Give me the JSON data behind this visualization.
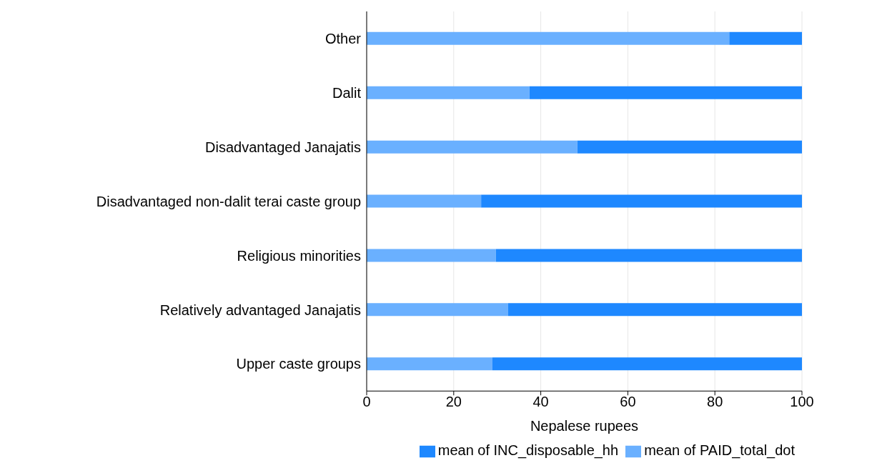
{
  "chart_data": {
    "type": "bar",
    "orientation": "horizontal",
    "stacked": true,
    "categories": [
      "Other",
      "Dalit",
      "Disadvantaged Janajatis",
      "Disadvantaged non-dalit terai caste group",
      "Religious minorities",
      "Relatively advantaged Janajatis",
      "Upper caste groups"
    ],
    "series": [
      {
        "name": "mean of PAID_total_dot",
        "color": "#6ab0ff",
        "values": [
          83.3,
          37.4,
          48.4,
          26.3,
          29.7,
          32.5,
          28.9
        ]
      },
      {
        "name": "mean of INC_disposable_hh",
        "color": "#1e88ff",
        "values": [
          16.7,
          62.6,
          51.6,
          73.7,
          70.3,
          67.5,
          71.1
        ]
      }
    ],
    "xlabel": "Nepalese rupees",
    "xlim": [
      0,
      100
    ],
    "xticks": [
      0,
      20,
      40,
      60,
      80,
      100
    ],
    "grid": "x",
    "legend": "bottom right"
  }
}
